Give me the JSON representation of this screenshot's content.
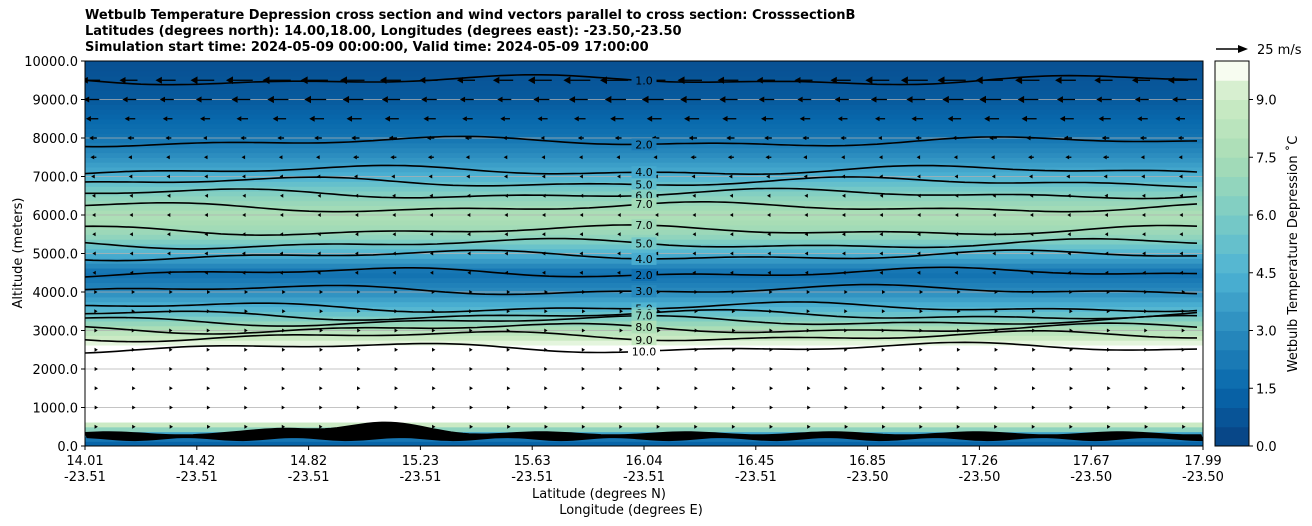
{
  "chart_data": {
    "type": "heatmap",
    "title": [
      "Wetbulb Temperature Depression cross section and wind vectors parallel to cross section: CrosssectionB",
      "Latitudes (degrees north): 14.00,18.00, Longitudes (degrees east): -23.50,-23.50",
      "Simulation start time: 2024-05-09 00:00:00, Valid time: 2024-05-09 17:00:00"
    ],
    "xlabel_lat": "Latitude (degrees N)",
    "xlabel_lon": "Longitude (degrees E)",
    "ylabel": "Altitude (meters)",
    "ylim": [
      0,
      10000
    ],
    "yticks": [
      "0.0",
      "1000.0",
      "2000.0",
      "3000.0",
      "4000.0",
      "5000.0",
      "6000.0",
      "7000.0",
      "8000.0",
      "9000.0",
      "10000.0"
    ],
    "xticks": [
      {
        "lat": "14.01",
        "lon": "-23.51"
      },
      {
        "lat": "14.42",
        "lon": "-23.51"
      },
      {
        "lat": "14.82",
        "lon": "-23.51"
      },
      {
        "lat": "15.23",
        "lon": "-23.51"
      },
      {
        "lat": "15.63",
        "lon": "-23.51"
      },
      {
        "lat": "16.04",
        "lon": "-23.51"
      },
      {
        "lat": "16.45",
        "lon": "-23.51"
      },
      {
        "lat": "16.85",
        "lon": "-23.50"
      },
      {
        "lat": "17.26",
        "lon": "-23.50"
      },
      {
        "lat": "17.67",
        "lon": "-23.50"
      },
      {
        "lat": "17.99",
        "lon": "-23.50"
      }
    ],
    "colorbar": {
      "label": "Wetbulb Temperature Depression ˚C",
      "ticks": [
        "0.0",
        "1.5",
        "3.0",
        "4.5",
        "6.0",
        "7.5",
        "9.0"
      ],
      "range": [
        0,
        10
      ]
    },
    "wind_key": "25 m/s",
    "grid": true,
    "profile": [
      {
        "alt": 0,
        "value": 1.0
      },
      {
        "alt": 250,
        "value": 2.5
      },
      {
        "alt": 500,
        "value": 8.0
      },
      {
        "alt": 700,
        "value": 11.0
      },
      {
        "alt": 2000,
        "value": 11.0
      },
      {
        "alt": 2600,
        "value": 10.0
      },
      {
        "alt": 3000,
        "value": 8.0
      },
      {
        "alt": 3500,
        "value": 5.0
      },
      {
        "alt": 4000,
        "value": 3.0
      },
      {
        "alt": 4500,
        "value": 1.8
      },
      {
        "alt": 5000,
        "value": 4.5
      },
      {
        "alt": 5500,
        "value": 7.0
      },
      {
        "alt": 6000,
        "value": 7.8
      },
      {
        "alt": 6500,
        "value": 6.5
      },
      {
        "alt": 7000,
        "value": 4.5
      },
      {
        "alt": 7500,
        "value": 3.2
      },
      {
        "alt": 8000,
        "value": 2.0
      },
      {
        "alt": 9000,
        "value": 1.0
      },
      {
        "alt": 10000,
        "value": 0.6
      }
    ],
    "contours": [
      {
        "label": "1.0",
        "alt": 9500
      },
      {
        "label": "2.0",
        "alt": 7900
      },
      {
        "label": "4.0",
        "alt": 7150
      },
      {
        "label": "5.0",
        "alt": 6850
      },
      {
        "label": "6.0",
        "alt": 6550
      },
      {
        "label": "7.0",
        "alt": 6200
      },
      {
        "label": "7.0",
        "alt": 5600
      },
      {
        "label": "5.0",
        "alt": 5250
      },
      {
        "label": "4.0",
        "alt": 4950
      },
      {
        "label": "2.0",
        "alt": 4500
      },
      {
        "label": "3.0",
        "alt": 4050
      },
      {
        "label": "5.0",
        "alt": 3600
      },
      {
        "label": "6.0",
        "alt": 3400
      },
      {
        "label": "7.0",
        "alt": 3250
      },
      {
        "label": "8.0",
        "alt": 3050
      },
      {
        "label": "9.0",
        "alt": 2850
      },
      {
        "label": "10.0",
        "alt": 2550
      }
    ],
    "wind_rows": [
      {
        "alt": 9500,
        "u": -12
      },
      {
        "alt": 9000,
        "u": -9
      },
      {
        "alt": 8500,
        "u": -6
      },
      {
        "alt": 8000,
        "u": -3
      },
      {
        "alt": 7500,
        "u": -2
      },
      {
        "alt": 7000,
        "u": -1.5
      },
      {
        "alt": 6500,
        "u": -1
      },
      {
        "alt": 6000,
        "u": -1
      },
      {
        "alt": 5500,
        "u": -1
      },
      {
        "alt": 5000,
        "u": -1
      },
      {
        "alt": 4500,
        "u": -1
      },
      {
        "alt": 4000,
        "u": 1
      },
      {
        "alt": 3500,
        "u": 1
      },
      {
        "alt": 3000,
        "u": 1
      },
      {
        "alt": 2500,
        "u": 1
      },
      {
        "alt": 2000,
        "u": 1
      },
      {
        "alt": 1500,
        "u": 1
      },
      {
        "alt": 1000,
        "u": 1
      },
      {
        "alt": 500,
        "u": 1
      }
    ]
  }
}
